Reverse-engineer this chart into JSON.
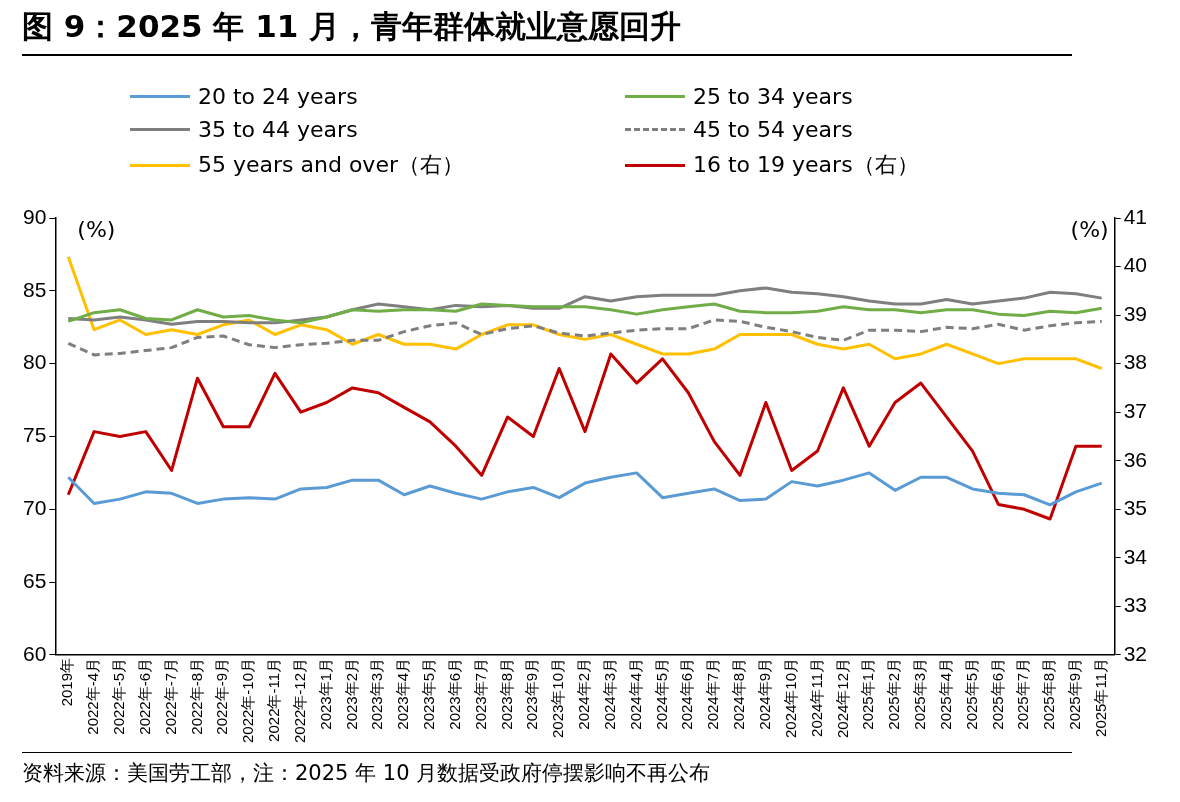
{
  "chart_data": {
    "type": "line",
    "title": "图 9：2025 年 11 月，青年群体就业意愿回升",
    "categories": [
      "2019年",
      "2022年-4月",
      "2022年-5月",
      "2022年-6月",
      "2022年-7月",
      "2022年-8月",
      "2022年-9月",
      "2022年-10月",
      "2022年-11月",
      "2022年-12月",
      "2023年1月",
      "2023年2月",
      "2023年3月",
      "2023年4月",
      "2023年5月",
      "2023年6月",
      "2023年7月",
      "2023年8月",
      "2023年9月",
      "2023年10月",
      "2024年2月",
      "2024年3月",
      "2024年4月",
      "2024年5月",
      "2024年6月",
      "2024年7月",
      "2024年8月",
      "2024年9月",
      "2024年10月",
      "2024年11月",
      "2024年12月",
      "2025年1月",
      "2025年2月",
      "2025年3月",
      "2025年4月",
      "2025年5月",
      "2025年6月",
      "2025年7月",
      "2025年8月",
      "2025年9月",
      "2025年11月"
    ],
    "series": [
      {
        "name": "20 to 24 years",
        "color": "#5b9bd5",
        "values": [
          72.2,
          70.4,
          70.7,
          71.2,
          71.1,
          70.4,
          70.7,
          70.8,
          70.7,
          71.4,
          71.5,
          72.0,
          72.0,
          71.0,
          71.6,
          71.1,
          70.7,
          71.2,
          71.5,
          70.8,
          71.8,
          72.2,
          72.5,
          70.8,
          71.1,
          71.4,
          70.6,
          70.7,
          71.9,
          71.6,
          72.0,
          72.5,
          71.3,
          72.2,
          72.2,
          71.4,
          71.1,
          71.0,
          70.3,
          71.2,
          71.8
        ]
      },
      {
        "name": "25 to 34 years",
        "color": "#70ad47",
        "values": [
          82.9,
          83.5,
          83.7,
          83.1,
          83.0,
          83.7,
          83.2,
          83.3,
          83.0,
          82.8,
          83.2,
          83.7,
          83.6,
          83.7,
          83.7,
          83.6,
          84.1,
          84.0,
          83.9,
          83.9,
          83.9,
          83.7,
          83.4,
          83.7,
          83.9,
          84.1,
          83.6,
          83.5,
          83.5,
          83.6,
          83.9,
          83.7,
          83.7,
          83.5,
          83.7,
          83.7,
          83.4,
          83.3,
          83.6,
          83.5,
          83.8
        ]
      },
      {
        "name": "35 to 44 years",
        "color": "#7f7f7f",
        "values": [
          83.1,
          83.0,
          83.2,
          83.0,
          82.7,
          82.9,
          82.9,
          82.8,
          82.8,
          83.0,
          83.2,
          83.7,
          84.1,
          83.9,
          83.7,
          84.0,
          83.9,
          84.0,
          83.8,
          83.8,
          84.6,
          84.3,
          84.6,
          84.7,
          84.7,
          84.7,
          85.0,
          85.2,
          84.9,
          84.8,
          84.6,
          84.3,
          84.1,
          84.1,
          84.4,
          84.1,
          84.3,
          84.5,
          84.9,
          84.8,
          84.5
        ]
      },
      {
        "name": "45 to 54 years",
        "color": "#7f7f7f",
        "line_style": "dashed",
        "values": [
          81.4,
          80.6,
          80.7,
          80.9,
          81.1,
          81.8,
          81.9,
          81.3,
          81.1,
          81.3,
          81.4,
          81.6,
          81.6,
          82.2,
          82.6,
          82.8,
          82.0,
          82.4,
          82.6,
          82.1,
          81.9,
          82.1,
          82.3,
          82.4,
          82.4,
          83.0,
          82.9,
          82.5,
          82.2,
          81.8,
          81.6,
          82.3,
          82.3,
          82.2,
          82.5,
          82.4,
          82.7,
          82.3,
          82.6,
          82.8,
          82.9
        ]
      },
      {
        "name": "55 years and over（右）",
        "color": "#ffc000",
        "axis": "y2",
        "values": [
          40.2,
          38.7,
          38.9,
          38.6,
          38.7,
          38.6,
          38.8,
          38.9,
          38.6,
          38.8,
          38.7,
          38.4,
          38.6,
          38.4,
          38.4,
          38.3,
          38.6,
          38.8,
          38.8,
          38.6,
          38.5,
          38.6,
          38.4,
          38.2,
          38.2,
          38.3,
          38.6,
          38.6,
          38.6,
          38.4,
          38.3,
          38.4,
          38.1,
          38.2,
          38.4,
          38.2,
          38.0,
          38.1,
          38.1,
          38.1,
          37.9
        ]
      },
      {
        "name": "16 to 19 years（右）",
        "color": "#c00000",
        "axis": "y2",
        "values": [
          35.3,
          36.6,
          36.5,
          36.6,
          35.8,
          37.7,
          36.7,
          36.7,
          37.8,
          37.0,
          37.2,
          37.5,
          37.4,
          37.1,
          36.8,
          36.3,
          35.7,
          36.9,
          36.5,
          37.9,
          36.6,
          38.2,
          37.6,
          38.1,
          37.4,
          36.4,
          35.7,
          37.2,
          35.8,
          36.2,
          37.5,
          36.3,
          37.2,
          37.6,
          36.9,
          36.2,
          35.1,
          35.0,
          34.8,
          36.3,
          36.3
        ]
      }
    ],
    "ylabel": "(%)",
    "y2label": "(%)",
    "ylim": [
      60,
      90
    ],
    "yticks": [
      60,
      65,
      70,
      75,
      80,
      85,
      90
    ],
    "y2lim": [
      32,
      41
    ],
    "y2ticks": [
      32,
      33,
      34,
      35,
      36,
      37,
      38,
      39,
      40,
      41
    ],
    "legend": "top",
    "annotations": [
      "资料来源：美国劳工部，注：2025 年 10 月数据受政府停摆影响不再公布"
    ]
  }
}
